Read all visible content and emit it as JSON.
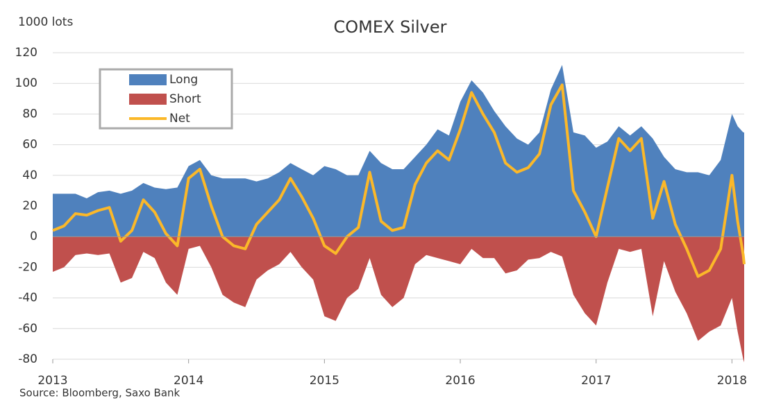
{
  "chart_data": {
    "type": "area",
    "title": "COMEX Silver",
    "y_label": "1000 lots",
    "source": "Source: Bloomberg,  Saxo Bank",
    "x": [
      2013.0,
      2013.083,
      2013.167,
      2013.25,
      2013.333,
      2013.417,
      2013.5,
      2013.583,
      2013.667,
      2013.75,
      2013.833,
      2013.917,
      2014.0,
      2014.083,
      2014.167,
      2014.25,
      2014.333,
      2014.417,
      2014.5,
      2014.583,
      2014.667,
      2014.75,
      2014.833,
      2014.917,
      2015.0,
      2015.083,
      2015.167,
      2015.25,
      2015.333,
      2015.417,
      2015.5,
      2015.583,
      2015.667,
      2015.75,
      2015.833,
      2015.917,
      2016.0,
      2016.083,
      2016.167,
      2016.25,
      2016.333,
      2016.417,
      2016.5,
      2016.583,
      2016.667,
      2016.75,
      2016.833,
      2016.917,
      2017.0,
      2017.083,
      2017.167,
      2017.25,
      2017.333,
      2017.417,
      2017.5,
      2017.583,
      2017.667,
      2017.75,
      2017.833,
      2017.917,
      2018.0,
      2018.042,
      2018.083,
      2018.09
    ],
    "series": [
      {
        "name": "Long",
        "type": "area",
        "color": "#4f81bd",
        "values": [
          28,
          28,
          28,
          25,
          29,
          30,
          28,
          30,
          35,
          32,
          31,
          32,
          46,
          50,
          40,
          38,
          38,
          38,
          36,
          38,
          42,
          48,
          44,
          40,
          46,
          44,
          40,
          40,
          56,
          48,
          44,
          44,
          52,
          60,
          70,
          66,
          88,
          102,
          94,
          82,
          72,
          64,
          60,
          68,
          96,
          112,
          68,
          66,
          58,
          62,
          72,
          66,
          72,
          64,
          52,
          44,
          42,
          42,
          40,
          50,
          80,
          72,
          68,
          68
        ]
      },
      {
        "name": "Short",
        "type": "area",
        "color": "#c0504d",
        "values": [
          -23,
          -20,
          -12,
          -11,
          -12,
          -11,
          -30,
          -27,
          -10,
          -14,
          -30,
          -38,
          -8,
          -6,
          -20,
          -38,
          -43,
          -46,
          -28,
          -22,
          -18,
          -10,
          -20,
          -28,
          -52,
          -55,
          -40,
          -34,
          -14,
          -38,
          -46,
          -40,
          -18,
          -12,
          -14,
          -16,
          -18,
          -8,
          -14,
          -14,
          -24,
          -22,
          -15,
          -14,
          -10,
          -13,
          -38,
          -50,
          -58,
          -30,
          -8,
          -10,
          -8,
          -52,
          -16,
          -36,
          -50,
          -68,
          -62,
          -58,
          -40,
          -62,
          -80,
          -82
        ]
      },
      {
        "name": "Net",
        "type": "line",
        "color": "#fbb829",
        "values": [
          4,
          7,
          15,
          14,
          17,
          19,
          -3,
          4,
          24,
          16,
          2,
          -6,
          38,
          44,
          20,
          0,
          -6,
          -8,
          8,
          16,
          24,
          38,
          26,
          12,
          -6,
          -11,
          0,
          6,
          42,
          10,
          4,
          6,
          34,
          48,
          56,
          50,
          70,
          94,
          80,
          68,
          48,
          42,
          45,
          54,
          86,
          99,
          30,
          16,
          0,
          32,
          64,
          56,
          64,
          12,
          36,
          8,
          -8,
          -26,
          -22,
          -8,
          40,
          10,
          -12,
          -18
        ]
      }
    ],
    "xlim": [
      2013,
      2018.09
    ],
    "xticks": [
      2013,
      2014,
      2015,
      2016,
      2017,
      2018
    ],
    "ylim": [
      -80,
      120
    ],
    "yticks": [
      -80,
      -60,
      -40,
      -20,
      0,
      20,
      40,
      60,
      80,
      100,
      120
    ],
    "grid": true
  }
}
